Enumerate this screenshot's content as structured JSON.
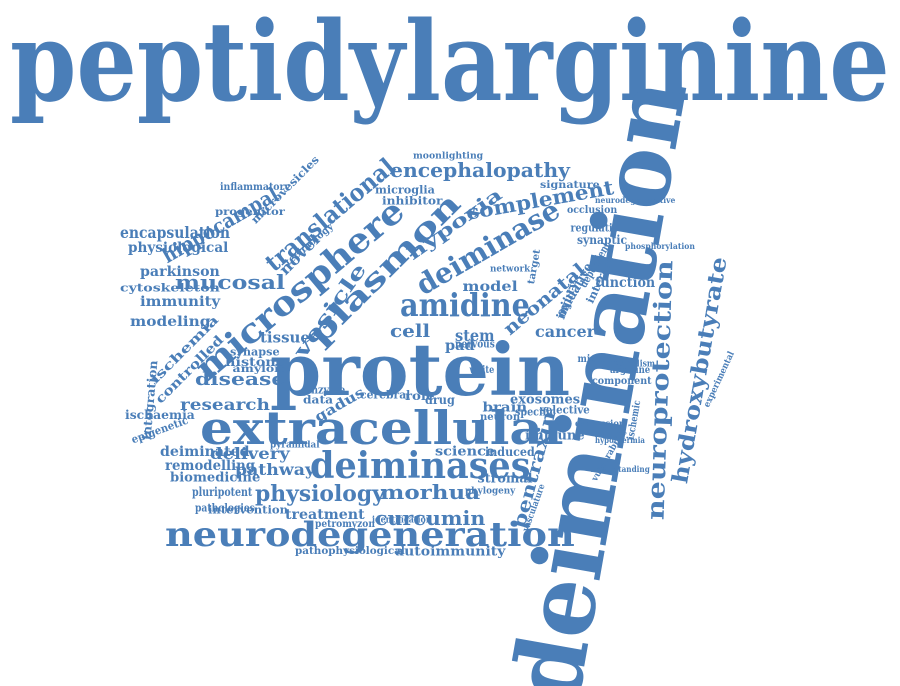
{
  "color": "#4a7eb8",
  "words": [
    "peptidylarginine",
    "deimination",
    "protein",
    "extracellular",
    "deiminases",
    "neurodegeneration",
    "microsphere",
    "plasmon",
    "amidine",
    "deiminase",
    "translational",
    "neuroprotection",
    "hydroxybutyrate",
    "physiology",
    "curcumin",
    "encephalopathy",
    "complement",
    "morhua",
    "pentraxin",
    "hypoxia",
    "hippocampal",
    "mucosal",
    "vesicle",
    "neonatal",
    "disease",
    "research",
    "delivery",
    "pathway",
    "deiminated",
    "remodelling",
    "biomedicine",
    "treatment",
    "autoimmunity",
    "pathophysiological",
    "encapsulation",
    "physiological",
    "parkinson",
    "immunity",
    "modeling",
    "cytoskeleton",
    "microvesicles",
    "inflammatory",
    "progenitor",
    "ischemia",
    "controlled",
    "integration",
    "ischaemia",
    "epigenetic",
    "histone",
    "synapse",
    "amyloid",
    "tissue",
    "cell",
    "stem",
    "pad",
    "cancer",
    "model",
    "function",
    "gadus",
    "science",
    "induced",
    "brain",
    "exosomes",
    "immune",
    "stromal",
    "data",
    "drug",
    "role",
    "white",
    "nervous",
    "microglia",
    "inhibitor",
    "moonlighting",
    "signature",
    "novel",
    "technology",
    "oxidative",
    "injury",
    "interest",
    "dependent",
    "synaptic",
    "regulation",
    "occlusion",
    "neurodegenerative",
    "network",
    "target",
    "arginine",
    "ischemic",
    "component",
    "vulnerability",
    "experimental",
    "pluripotent",
    "pathologies",
    "intervention",
    "petromyzon",
    "identification",
    "phylogeny",
    "cerebral",
    "enzyme",
    "selective",
    "specific",
    "neuron",
    "microrna",
    "metabolism",
    "expression",
    "vasculature",
    "hypothermia",
    "phosphorylation",
    "understanding",
    "pyramidal"
  ]
}
